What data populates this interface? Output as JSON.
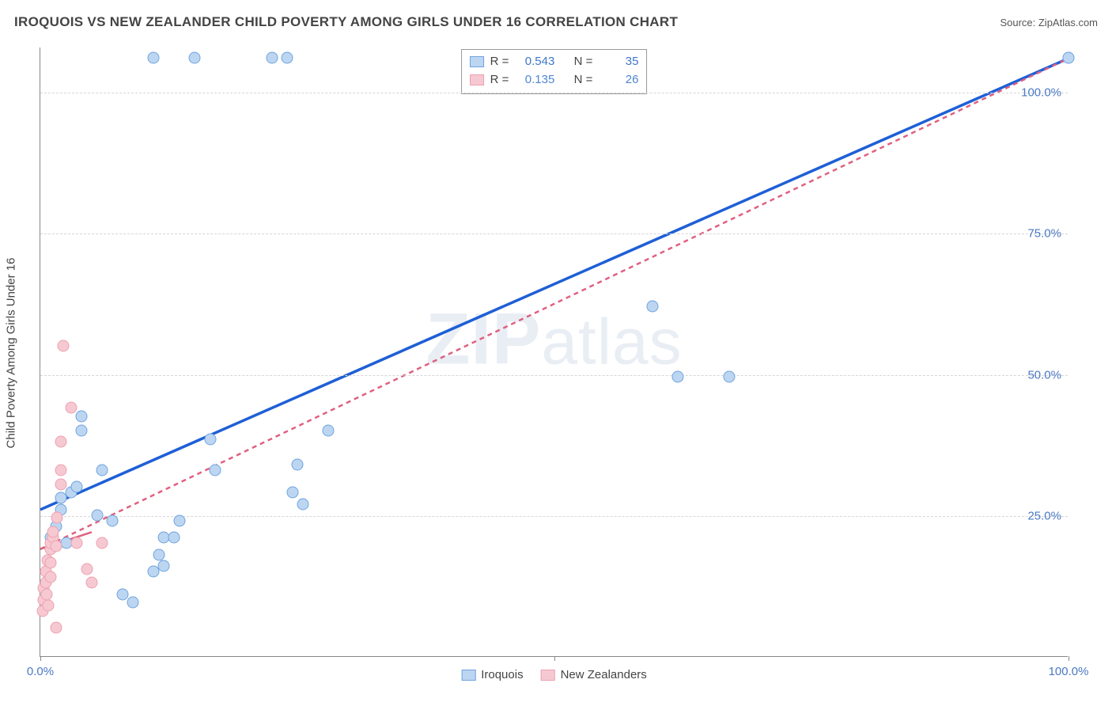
{
  "title": "IROQUOIS VS NEW ZEALANDER CHILD POVERTY AMONG GIRLS UNDER 16 CORRELATION CHART",
  "source": "Source: ZipAtlas.com",
  "yaxis_label": "Child Poverty Among Girls Under 16",
  "watermark": {
    "bold": "ZIP",
    "rest": "atlas"
  },
  "chart": {
    "type": "scatter",
    "xlim": [
      0,
      100
    ],
    "ylim": [
      0,
      108
    ],
    "background_color": "#ffffff",
    "grid_color": "#d6d6d6",
    "axis_color": "#888888",
    "marker_radius": 7.5,
    "yticks": [
      {
        "v": 25,
        "label": "25.0%"
      },
      {
        "v": 50,
        "label": "50.0%"
      },
      {
        "v": 75,
        "label": "75.0%"
      },
      {
        "v": 100,
        "label": "100.0%"
      }
    ],
    "xticks": [
      {
        "v": 0,
        "label": "0.0%"
      },
      {
        "v": 50,
        "label": ""
      },
      {
        "v": 100,
        "label": "100.0%"
      }
    ],
    "tick_color": "#4a78c4",
    "series": [
      {
        "key": "iroquois",
        "label": "Iroquois",
        "fill": "#bcd6f2",
        "stroke": "#6fa3dd",
        "trend_stroke": "#1e5fd6",
        "trend_width": 3.5,
        "trend_dash": "none",
        "trend": {
          "x1": 0,
          "y1": 26,
          "x2": 100,
          "y2": 106
        },
        "R": "0.543",
        "N": "35",
        "stat_color": "#3e77c9",
        "points": [
          [
            1,
            21
          ],
          [
            1.5,
            23
          ],
          [
            2,
            26
          ],
          [
            2,
            28
          ],
          [
            2.5,
            20
          ],
          [
            3,
            29
          ],
          [
            3.5,
            30
          ],
          [
            4,
            40
          ],
          [
            4,
            42.5
          ],
          [
            5.5,
            25
          ],
          [
            6,
            33
          ],
          [
            7,
            24
          ],
          [
            8,
            11
          ],
          [
            9,
            9.5
          ],
          [
            11,
            106
          ],
          [
            11,
            15
          ],
          [
            11.5,
            18
          ],
          [
            12,
            21
          ],
          [
            12,
            16
          ],
          [
            13,
            21
          ],
          [
            13.5,
            24
          ],
          [
            15,
            106
          ],
          [
            16.5,
            38.5
          ],
          [
            17,
            33
          ],
          [
            22.5,
            106
          ],
          [
            24,
            106
          ],
          [
            24.5,
            29
          ],
          [
            25,
            34
          ],
          [
            25.5,
            27
          ],
          [
            28,
            40
          ],
          [
            59.5,
            62
          ],
          [
            62,
            49.5
          ],
          [
            67,
            49.5
          ],
          [
            100,
            106
          ],
          [
            100,
            106
          ]
        ]
      },
      {
        "key": "new_zealanders",
        "label": "New Zealanders",
        "fill": "#f6c9d2",
        "stroke": "#eea0b0",
        "trend_stroke": "#e06080",
        "trend_width": 2.5,
        "trend_dash": "6 5",
        "trend": {
          "x1": 0,
          "y1": 19,
          "x2": 100,
          "y2": 106
        },
        "trend_solid": {
          "x1": 0,
          "y1": 19,
          "x2": 5,
          "y2": 22
        },
        "R": "0.135",
        "N": "26",
        "stat_color": "#4e86cf",
        "points": [
          [
            0.2,
            8
          ],
          [
            0.3,
            10
          ],
          [
            0.3,
            12
          ],
          [
            0.5,
            13
          ],
          [
            0.5,
            15
          ],
          [
            0.6,
            11
          ],
          [
            0.7,
            17
          ],
          [
            0.8,
            9
          ],
          [
            1,
            14
          ],
          [
            1,
            16.5
          ],
          [
            1,
            19
          ],
          [
            1,
            20
          ],
          [
            1.2,
            21
          ],
          [
            1.2,
            22
          ],
          [
            1.5,
            5
          ],
          [
            1.5,
            19.5
          ],
          [
            1.6,
            24.5
          ],
          [
            2,
            30.5
          ],
          [
            2,
            33
          ],
          [
            2,
            38
          ],
          [
            2.2,
            55
          ],
          [
            3,
            44
          ],
          [
            3.5,
            20
          ],
          [
            4.5,
            15.5
          ],
          [
            5,
            13
          ],
          [
            6,
            20
          ]
        ]
      }
    ]
  },
  "info_box": {
    "rows": [
      {
        "series": "iroquois"
      },
      {
        "series": "new_zealanders"
      }
    ]
  }
}
